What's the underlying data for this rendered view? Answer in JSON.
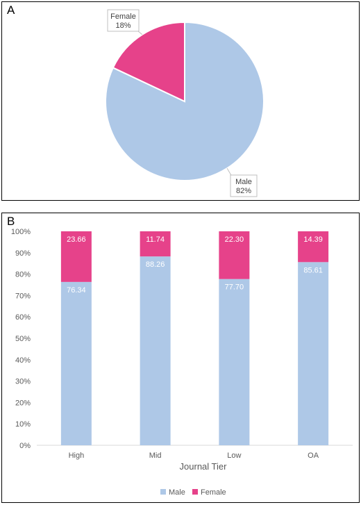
{
  "panel_a": {
    "letter": "A"
  },
  "panel_b": {
    "letter": "B"
  },
  "colors": {
    "male": "#AEC8E7",
    "female": "#E6428A",
    "callout_border": "#BFBFBF",
    "grid": "#D9D9D9"
  },
  "chart_data": [
    {
      "type": "pie",
      "title": "",
      "slices": [
        {
          "label": "Male",
          "value": 82,
          "value_label": "82%",
          "color": "#AEC8E7"
        },
        {
          "label": "Female",
          "value": 18,
          "value_label": "18%",
          "color": "#E6428A"
        }
      ]
    },
    {
      "type": "bar",
      "stacked": true,
      "percent": true,
      "title": "",
      "xlabel": "Journal Tier",
      "ylabel": "",
      "categories": [
        "High",
        "Mid",
        "Low",
        "OA"
      ],
      "ylim": [
        0,
        100
      ],
      "yticks": [
        "0%",
        "10%",
        "20%",
        "30%",
        "40%",
        "50%",
        "60%",
        "70%",
        "80%",
        "90%",
        "100%"
      ],
      "series": [
        {
          "name": "Male",
          "values": [
            76.34,
            88.26,
            77.7,
            85.61
          ],
          "labels": [
            "76.34",
            "88.26",
            "77.70",
            "85.61"
          ],
          "color": "#AEC8E7"
        },
        {
          "name": "Female",
          "values": [
            23.66,
            11.74,
            22.3,
            14.39
          ],
          "labels": [
            "23.66",
            "11.74",
            "22.30",
            "14.39"
          ],
          "color": "#E6428A"
        }
      ],
      "legend": {
        "position": "bottom",
        "entries": [
          "Male",
          "Female"
        ]
      },
      "grid": false
    }
  ]
}
